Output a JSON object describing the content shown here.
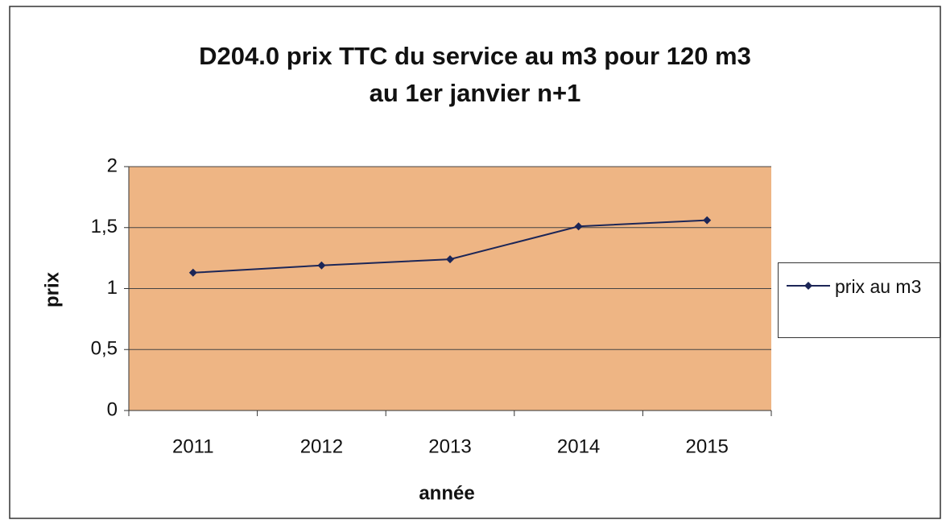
{
  "chart_data": {
    "type": "line",
    "title": [
      "D204.0 prix TTC du service au m3 pour 120 m3",
      "au 1er janvier n+1"
    ],
    "x_label": "année",
    "y_label": "prix",
    "categories": [
      "2011",
      "2012",
      "2013",
      "2014",
      "2015"
    ],
    "series": [
      {
        "name": "prix au m3",
        "color": "#1c2657",
        "values": [
          1.13,
          1.19,
          1.24,
          1.51,
          1.56
        ]
      }
    ],
    "ylim": [
      0,
      2
    ],
    "yticks": [
      0,
      {
        "value": 0.5,
        "label": "0,5"
      },
      1,
      {
        "value": 1.5,
        "label": "1,5"
      },
      2
    ],
    "grid": true,
    "plot_color": "#eeb584",
    "legend": "right"
  }
}
